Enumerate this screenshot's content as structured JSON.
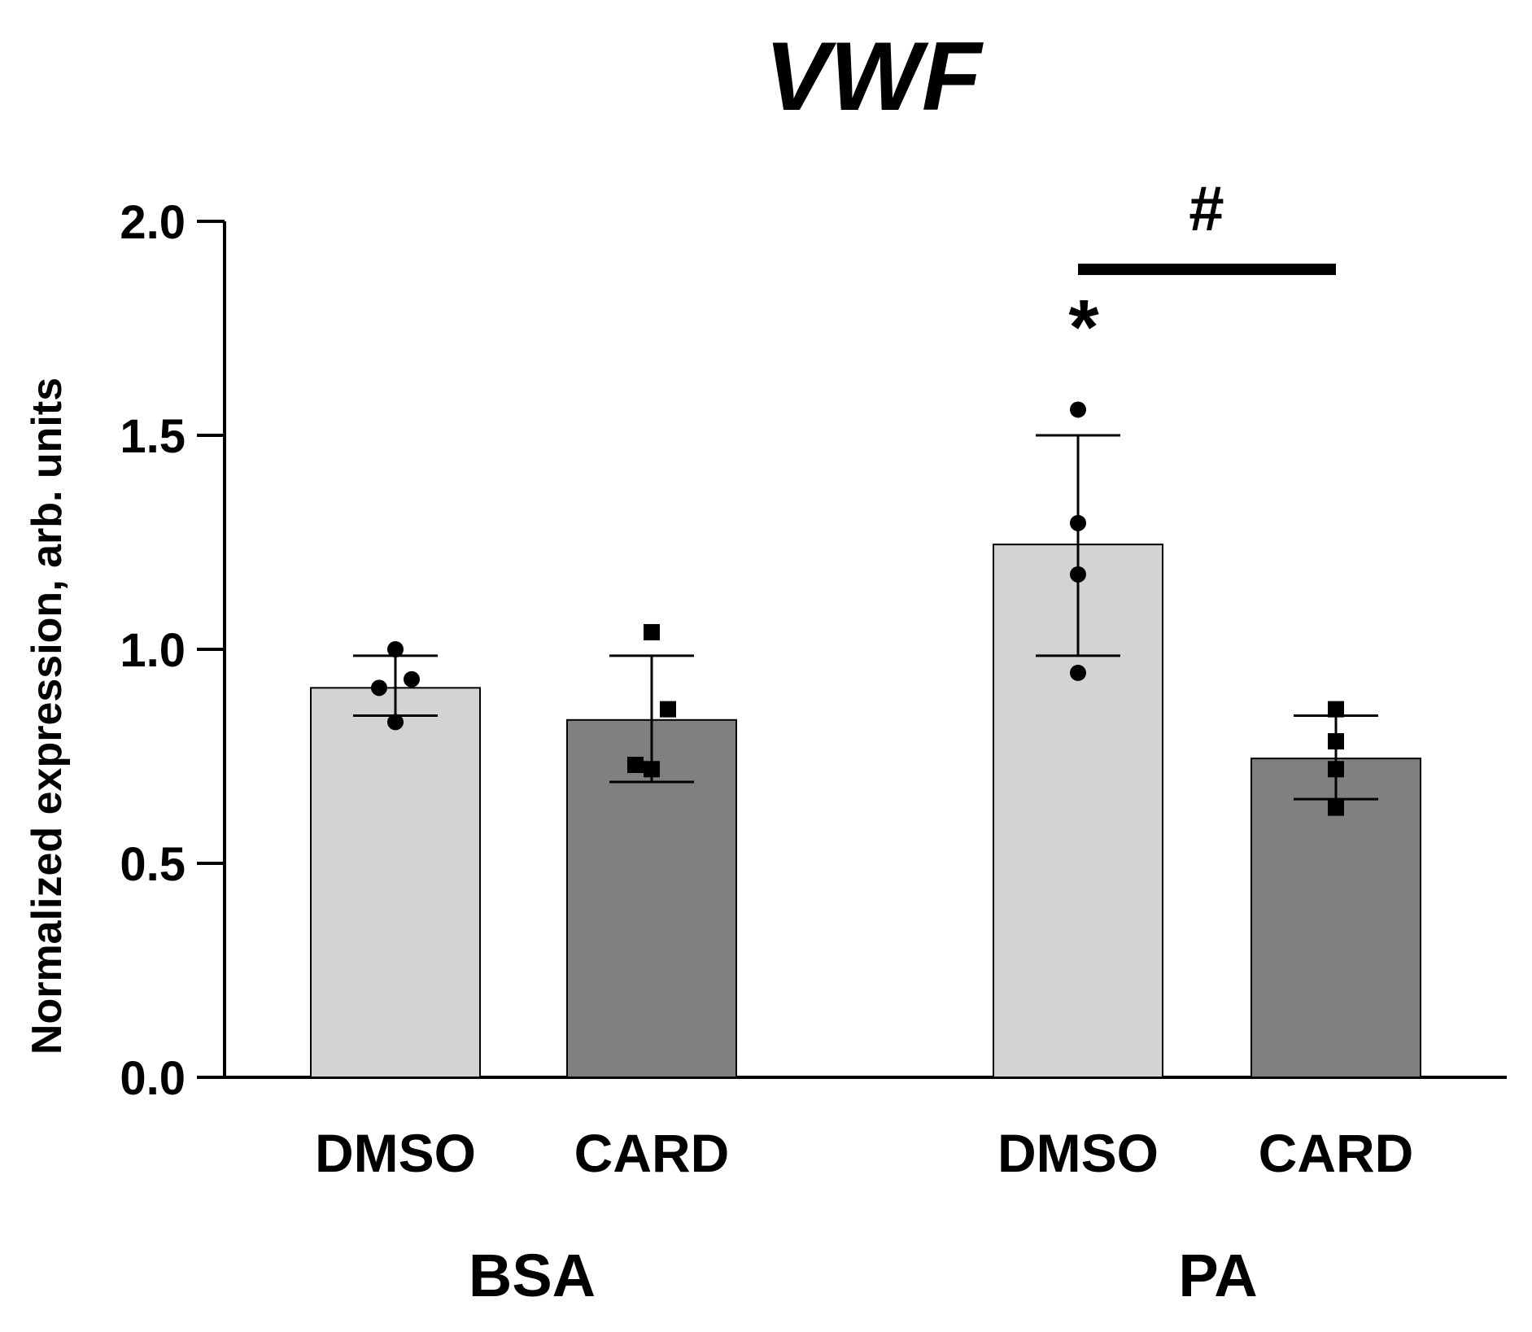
{
  "chart_data": {
    "type": "bar",
    "title": "VWF",
    "xlabel": "",
    "ylabel": "Normalized expression, arb. units",
    "ylim": [
      0,
      2.0
    ],
    "yticks": [
      "0.0",
      "0.5",
      "1.0",
      "1.5",
      "2.0"
    ],
    "ytick_values": [
      0,
      0.5,
      1.0,
      1.5,
      2.0
    ],
    "grid": false,
    "groups": [
      "BSA",
      "PA"
    ],
    "categories": [
      "DMSO",
      "CARD",
      "DMSO",
      "CARD"
    ],
    "bars": [
      {
        "group": "BSA",
        "category": "DMSO",
        "mean": 0.91,
        "sd_low": 0.845,
        "sd_high": 0.985,
        "color": "#d3d3d3",
        "marker": "circle",
        "points": [
          0.83,
          0.91,
          0.93,
          1.0
        ]
      },
      {
        "group": "BSA",
        "category": "CARD",
        "mean": 0.835,
        "sd_low": 0.69,
        "sd_high": 0.985,
        "color": "#808080",
        "marker": "square",
        "points": [
          0.72,
          0.73,
          0.86,
          1.04
        ]
      },
      {
        "group": "PA",
        "category": "DMSO",
        "mean": 1.245,
        "sd_low": 0.985,
        "sd_high": 1.5,
        "color": "#d3d3d3",
        "marker": "circle",
        "points": [
          0.945,
          1.175,
          1.295,
          1.56
        ]
      },
      {
        "group": "PA",
        "category": "CARD",
        "mean": 0.745,
        "sd_low": 0.65,
        "sd_high": 0.845,
        "color": "#808080",
        "marker": "square",
        "points": [
          0.63,
          0.72,
          0.785,
          0.86
        ]
      }
    ],
    "annotations": [
      {
        "text": "*",
        "target": "PA DMSO",
        "y": 1.72
      },
      {
        "text": "#",
        "comparison": [
          "PA DMSO",
          "PA CARD"
        ],
        "y": 1.88
      }
    ]
  }
}
